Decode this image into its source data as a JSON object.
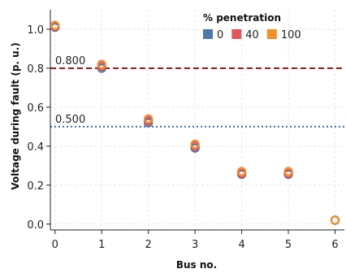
{
  "chart_data": {
    "type": "scatter",
    "xlabel": "Bus no.",
    "ylabel": "Voltage during fault (p. u.)",
    "xlim": [
      -0.1,
      6.2
    ],
    "ylim": [
      -0.03,
      1.1
    ],
    "x_ticks": [
      "0",
      "1",
      "2",
      "3",
      "4",
      "5",
      "6"
    ],
    "y_ticks": [
      "0.0",
      "0.2",
      "0.4",
      "0.6",
      "0.8",
      "1.0"
    ],
    "grid": true,
    "legend": {
      "title": "% penetration",
      "placement": "top-right",
      "entries": [
        "0",
        "40",
        "100"
      ]
    },
    "reference_lines": [
      {
        "y": 0.8,
        "label": "0.800",
        "color": "#a31515",
        "style": "dashed"
      },
      {
        "y": 0.5,
        "label": "0.500",
        "color": "#3b6ea5",
        "style": "dotted"
      }
    ],
    "series": [
      {
        "name": "0",
        "color": "#4e79a7",
        "x": [
          0,
          1,
          2,
          3,
          4,
          5,
          6
        ],
        "y": [
          1.01,
          0.8,
          0.52,
          0.39,
          0.255,
          0.255,
          0.02
        ]
      },
      {
        "name": "40",
        "color": "#e15759",
        "x": [
          0,
          1,
          2,
          3,
          4,
          5,
          6
        ],
        "y": [
          1.015,
          0.81,
          0.53,
          0.4,
          0.26,
          0.26,
          0.02
        ]
      },
      {
        "name": "100",
        "color": "#f28e2b",
        "x": [
          0,
          1,
          2,
          3,
          4,
          5,
          6
        ],
        "y": [
          1.02,
          0.82,
          0.54,
          0.41,
          0.27,
          0.27,
          0.02
        ]
      }
    ]
  }
}
